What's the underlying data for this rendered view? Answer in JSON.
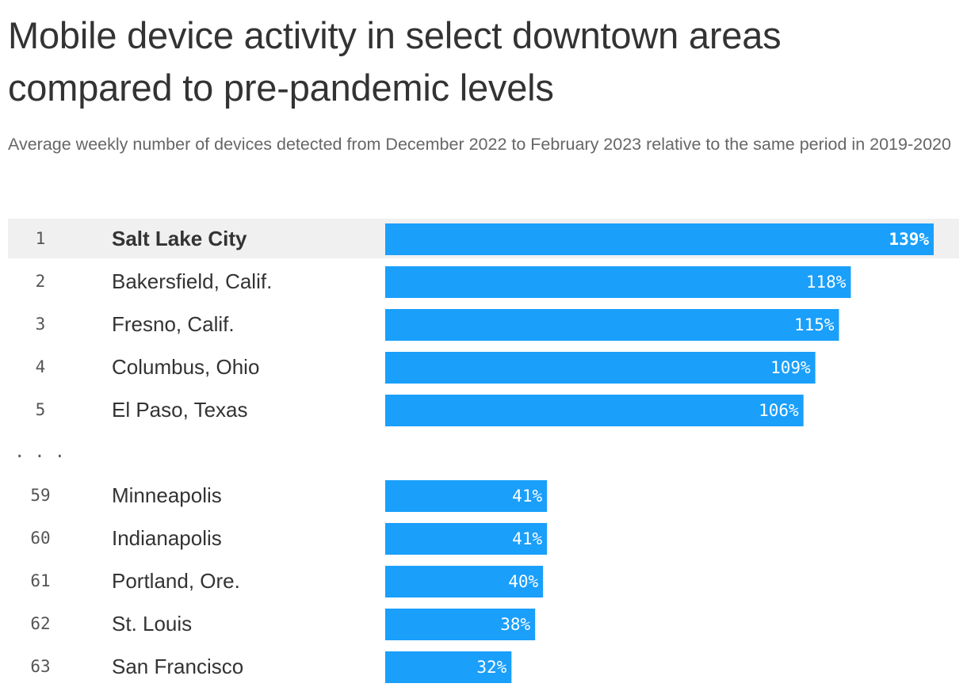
{
  "chart_data": {
    "type": "bar",
    "orientation": "horizontal",
    "title": "Mobile device activity in select downtown areas compared to pre-pandemic levels",
    "subtitle": "Average weekly number of devices detected from December 2022 to February 2023 relative to the same period in 2019-2020",
    "value_suffix": "%",
    "bar_color": "#1a9ffb",
    "highlight_row_color": "#f0f0f0",
    "gap_marker": ". . .",
    "rows": [
      {
        "rank": "1",
        "city": "Salt Lake City",
        "value": 139,
        "highlight": true
      },
      {
        "rank": "2",
        "city": "Bakersfield, Calif.",
        "value": 118
      },
      {
        "rank": "3",
        "city": "Fresno, Calif.",
        "value": 115
      },
      {
        "rank": "4",
        "city": "Columbus, Ohio",
        "value": 109
      },
      {
        "rank": "5",
        "city": "El Paso, Texas",
        "value": 106
      },
      {
        "gap": true
      },
      {
        "rank": "59",
        "city": "Minneapolis",
        "value": 41
      },
      {
        "rank": "60",
        "city": "Indianapolis",
        "value": 41
      },
      {
        "rank": "61",
        "city": "Portland, Ore.",
        "value": 40
      },
      {
        "rank": "62",
        "city": "St. Louis",
        "value": 38
      },
      {
        "rank": "63",
        "city": "San Francisco",
        "value": 32
      }
    ]
  }
}
